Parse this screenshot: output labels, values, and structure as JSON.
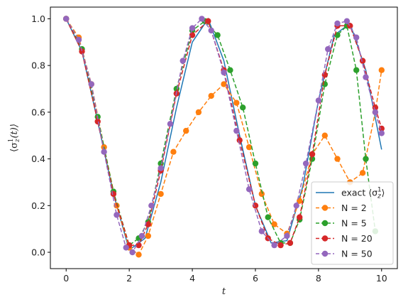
{
  "chart_data": {
    "type": "line",
    "xlabel": "t",
    "ylabel": "⟨σ",
    "ylabel_sub": "z",
    "ylabel_sup": "1",
    "ylabel_tail": "(t)⟩",
    "xlim": [
      -0.5,
      10.5
    ],
    "ylim": [
      -0.07,
      1.05
    ],
    "xticks": [
      "0",
      "2",
      "4",
      "6",
      "8",
      "10"
    ],
    "yticks": [
      "0.0",
      "0.2",
      "0.4",
      "0.6",
      "0.8",
      "1.0"
    ],
    "legend_position": "lower-right",
    "grid": false,
    "series": [
      {
        "name": "exact ⟨σ",
        "name_sub": "z",
        "name_sup": "1",
        "name_tail": "⟩",
        "style": "solid",
        "color": "#1f77b4",
        "x": [
          0,
          0.5,
          1,
          1.5,
          2,
          2.5,
          3,
          3.5,
          4,
          4.5,
          5,
          5.5,
          6,
          6.5,
          7,
          7.5,
          8,
          8.5,
          9,
          9.5,
          10
        ],
        "y": [
          1.0,
          0.86,
          0.56,
          0.25,
          0.01,
          0.06,
          0.3,
          0.62,
          0.9,
          1.0,
          0.82,
          0.5,
          0.2,
          0.04,
          0.05,
          0.28,
          0.65,
          0.93,
          0.98,
          0.78,
          0.44
        ]
      },
      {
        "name": "N = 2",
        "style": "dashed-markers",
        "color": "#ff7f0e",
        "x": [
          0,
          0.4,
          0.8,
          1.2,
          1.6,
          2.0,
          2.3,
          2.6,
          3.0,
          3.4,
          3.8,
          4.2,
          4.6,
          5.0,
          5.4,
          5.8,
          6.2,
          6.6,
          7.0,
          7.4,
          7.8,
          8.2,
          8.6,
          9.0,
          9.4,
          9.8,
          10.0
        ],
        "y": [
          1.0,
          0.92,
          0.72,
          0.45,
          0.2,
          0.02,
          -0.01,
          0.07,
          0.25,
          0.43,
          0.52,
          0.6,
          0.67,
          0.72,
          0.64,
          0.45,
          0.25,
          0.12,
          0.08,
          0.22,
          0.42,
          0.5,
          0.4,
          0.3,
          0.34,
          0.6,
          0.78
        ]
      },
      {
        "name": "N = 5",
        "style": "dashed-markers",
        "color": "#2ca02c",
        "x": [
          0,
          0.5,
          1.0,
          1.5,
          2.0,
          2.3,
          2.6,
          3.0,
          3.5,
          4.0,
          4.4,
          4.8,
          5.2,
          5.6,
          6.0,
          6.4,
          6.8,
          7.1,
          7.4,
          7.8,
          8.2,
          8.6,
          8.9,
          9.2,
          9.5,
          9.8
        ],
        "y": [
          1.0,
          0.87,
          0.58,
          0.26,
          0.03,
          0.06,
          0.13,
          0.38,
          0.7,
          0.95,
          0.99,
          0.93,
          0.78,
          0.62,
          0.38,
          0.15,
          0.04,
          0.04,
          0.14,
          0.4,
          0.72,
          0.93,
          0.97,
          0.78,
          0.4,
          0.09
        ]
      },
      {
        "name": "N = 20",
        "style": "dashed-markers",
        "color": "#d62728",
        "x": [
          0,
          0.5,
          1.0,
          1.5,
          2.0,
          2.3,
          2.6,
          3.0,
          3.5,
          4.0,
          4.5,
          5.0,
          5.5,
          6.0,
          6.4,
          6.8,
          7.1,
          7.4,
          7.8,
          8.2,
          8.6,
          9.0,
          9.4,
          9.8,
          10.0
        ],
        "y": [
          1.0,
          0.86,
          0.56,
          0.25,
          0.03,
          0.03,
          0.12,
          0.35,
          0.68,
          0.93,
          0.99,
          0.78,
          0.48,
          0.2,
          0.06,
          0.03,
          0.04,
          0.15,
          0.42,
          0.76,
          0.97,
          0.97,
          0.82,
          0.62,
          0.53
        ]
      },
      {
        "name": "N = 50",
        "style": "dashed-markers",
        "color": "#9467bd",
        "x": [
          0,
          0.4,
          0.8,
          1.2,
          1.6,
          1.9,
          2.1,
          2.4,
          2.7,
          3.0,
          3.3,
          3.7,
          4.0,
          4.3,
          4.6,
          5.0,
          5.4,
          5.8,
          6.2,
          6.6,
          7.0,
          7.3,
          7.6,
          8.0,
          8.3,
          8.6,
          8.9,
          9.2,
          9.5,
          9.8,
          10.0
        ],
        "y": [
          1.0,
          0.91,
          0.72,
          0.43,
          0.16,
          0.02,
          0.0,
          0.07,
          0.2,
          0.36,
          0.55,
          0.82,
          0.96,
          1.0,
          0.95,
          0.77,
          0.52,
          0.27,
          0.09,
          0.03,
          0.07,
          0.2,
          0.38,
          0.65,
          0.87,
          0.98,
          0.99,
          0.92,
          0.75,
          0.6,
          0.51
        ]
      }
    ]
  }
}
